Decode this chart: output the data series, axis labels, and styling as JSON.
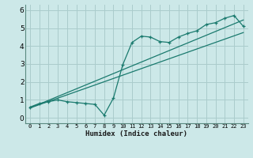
{
  "title": "",
  "xlabel": "Humidex (Indice chaleur)",
  "ylabel": "",
  "bg_color": "#cce8e8",
  "grid_color": "#aacccc",
  "line_color": "#1a7a6e",
  "spine_color": "#5a8a80",
  "xlim": [
    -0.5,
    23.5
  ],
  "ylim": [
    -0.3,
    6.3
  ],
  "xtick_labels": [
    "0",
    "1",
    "2",
    "3",
    "4",
    "5",
    "6",
    "7",
    "8",
    "9",
    "10",
    "11",
    "12",
    "13",
    "14",
    "15",
    "16",
    "17",
    "18",
    "19",
    "20",
    "21",
    "22",
    "23"
  ],
  "yticks": [
    0,
    1,
    2,
    3,
    4,
    5,
    6
  ],
  "curve_x": [
    0,
    1,
    2,
    3,
    4,
    5,
    6,
    7,
    8,
    9,
    10,
    11,
    12,
    13,
    14,
    15,
    16,
    17,
    18,
    19,
    20,
    21,
    22,
    23
  ],
  "curve_y": [
    0.6,
    0.8,
    0.9,
    1.0,
    0.9,
    0.85,
    0.8,
    0.75,
    0.15,
    1.1,
    2.95,
    4.2,
    4.55,
    4.5,
    4.25,
    4.2,
    4.5,
    4.7,
    4.85,
    5.2,
    5.3,
    5.55,
    5.7,
    5.1
  ],
  "line1_x": [
    0,
    23
  ],
  "line1_y": [
    0.55,
    5.45
  ],
  "line2_x": [
    0,
    23
  ],
  "line2_y": [
    0.55,
    4.75
  ]
}
